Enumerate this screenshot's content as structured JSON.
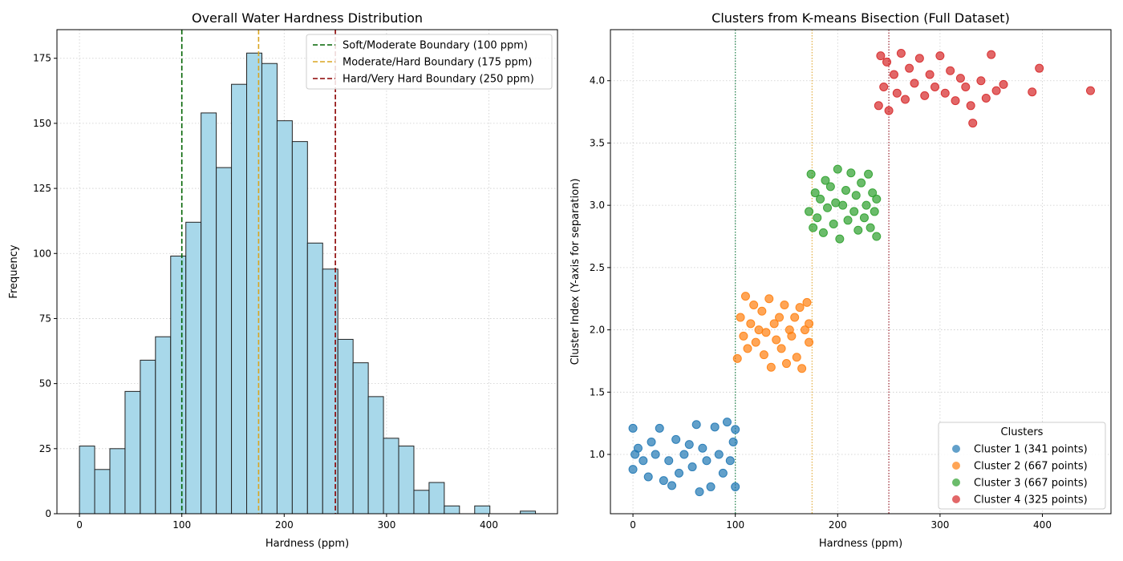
{
  "chart_data": [
    {
      "type": "histogram",
      "title": "Overall Water Hardness Distribution",
      "x_label": "Hardness (ppm)",
      "y_label": "Frequency",
      "bins": [
        0,
        14.85,
        29.7,
        44.55,
        59.4,
        74.25,
        89.1,
        103.95,
        118.8,
        133.65,
        148.5,
        163.35,
        178.2,
        193.05,
        207.9,
        222.75,
        237.6,
        252.45,
        267.3,
        282.15,
        297,
        311.85,
        326.7,
        341.55,
        356.4,
        371.25,
        386.1,
        400.95,
        415.8,
        430.65,
        445.5
      ],
      "values": [
        26,
        17,
        25,
        47,
        59,
        68,
        99,
        112,
        154,
        133,
        165,
        177,
        173,
        151,
        143,
        104,
        94,
        67,
        58,
        45,
        29,
        26,
        9,
        12,
        3,
        0,
        3,
        0,
        0,
        1
      ],
      "color": "#a8d8ea",
      "xlim": [
        -22,
        467
      ],
      "ylim": [
        0,
        186
      ],
      "xticks": [
        0,
        100,
        200,
        300,
        400
      ],
      "yticks": [
        0,
        25,
        50,
        75,
        100,
        125,
        150,
        175
      ],
      "grid": true,
      "vlines": [
        {
          "x": 100,
          "name": "Soft/Moderate Boundary (100 ppm)",
          "color": "#006400"
        },
        {
          "x": 175,
          "name": "Moderate/Hard Boundary (175 ppm)",
          "color": "#daa520"
        },
        {
          "x": 250,
          "name": "Hard/Very Hard Boundary (250 ppm)",
          "color": "#8b0000"
        }
      ],
      "legend": "upper right"
    },
    {
      "type": "scatter",
      "title": "Clusters from K-means Bisection (Full Dataset)",
      "x_label": "Hardness (ppm)",
      "y_label": "Cluster Index (Y-axis for separation)",
      "xlim": [
        -22,
        467
      ],
      "ylim": [
        0.524,
        4.41
      ],
      "xticks": [
        0,
        100,
        200,
        300,
        400
      ],
      "yticks": [
        {
          "value": 1,
          "label": "1.0"
        },
        {
          "value": 1.5,
          "label": "1.5"
        },
        {
          "value": 2,
          "label": "2.0"
        },
        {
          "value": 2.5,
          "label": "2.5"
        },
        {
          "value": 3,
          "label": "3.0"
        },
        {
          "value": 3.5,
          "label": "3.5"
        },
        {
          "value": 4,
          "label": "4.0"
        }
      ],
      "grid": true,
      "legend_title": "Clusters",
      "legend": "lower right",
      "vlines": [
        {
          "x": 100,
          "color": "#2e8b57"
        },
        {
          "x": 175,
          "color": "#e6b450"
        },
        {
          "x": 250,
          "color": "#a0303a"
        }
      ],
      "series": [
        {
          "name": "Cluster 1 (341 points)",
          "color": "#1f77b4",
          "x": [
            0,
            0,
            2,
            5,
            10,
            15,
            18,
            22,
            26,
            30,
            35,
            38,
            42,
            45,
            50,
            55,
            58,
            62,
            65,
            68,
            72,
            76,
            80,
            84,
            88,
            92,
            95,
            98,
            100,
            100
          ],
          "values": [
            1.21,
            0.88,
            1.0,
            1.05,
            0.95,
            0.82,
            1.1,
            1.0,
            1.21,
            0.79,
            0.95,
            0.75,
            1.12,
            0.85,
            1.0,
            1.08,
            0.9,
            1.24,
            0.7,
            1.05,
            0.95,
            0.74,
            1.22,
            1.0,
            0.85,
            1.26,
            0.95,
            1.1,
            0.74,
            1.2
          ]
        },
        {
          "name": "Cluster 2 (667 points)",
          "color": "#ff7f0e",
          "x": [
            102,
            105,
            108,
            110,
            112,
            115,
            118,
            120,
            123,
            126,
            128,
            130,
            133,
            135,
            138,
            140,
            143,
            145,
            148,
            150,
            153,
            155,
            158,
            160,
            163,
            165,
            168,
            170,
            172,
            172
          ],
          "values": [
            1.77,
            2.1,
            1.95,
            2.27,
            1.85,
            2.05,
            2.2,
            1.9,
            2.0,
            2.15,
            1.8,
            1.98,
            2.25,
            1.7,
            2.05,
            1.92,
            2.1,
            1.85,
            2.2,
            1.73,
            2.0,
            1.95,
            2.1,
            1.78,
            2.18,
            1.69,
            2.0,
            2.22,
            1.9,
            2.05
          ]
        },
        {
          "name": "Cluster 3 (667 points)",
          "color": "#2ca02c",
          "x": [
            172,
            174,
            176,
            178,
            180,
            183,
            186,
            188,
            190,
            193,
            196,
            198,
            200,
            202,
            205,
            208,
            210,
            213,
            216,
            218,
            220,
            223,
            226,
            228,
            230,
            232,
            234,
            236,
            238,
            238
          ],
          "values": [
            2.95,
            3.25,
            2.82,
            3.1,
            2.9,
            3.05,
            2.78,
            3.2,
            2.98,
            3.15,
            2.85,
            3.02,
            3.29,
            2.73,
            3.0,
            3.12,
            2.88,
            3.26,
            2.95,
            3.08,
            2.8,
            3.18,
            2.9,
            3.0,
            3.25,
            2.82,
            3.1,
            2.95,
            2.75,
            3.05
          ]
        },
        {
          "name": "Cluster 4 (325 points)",
          "color": "#d62728",
          "x": [
            240,
            242,
            245,
            248,
            250,
            255,
            258,
            262,
            266,
            270,
            275,
            280,
            285,
            290,
            295,
            300,
            305,
            310,
            315,
            320,
            325,
            330,
            332,
            340,
            345,
            350,
            355,
            362,
            390,
            397,
            447
          ],
          "values": [
            3.8,
            4.2,
            3.95,
            4.15,
            3.76,
            4.05,
            3.9,
            4.22,
            3.85,
            4.1,
            3.98,
            4.18,
            3.88,
            4.05,
            3.95,
            4.2,
            3.9,
            4.08,
            3.84,
            4.02,
            3.95,
            3.8,
            3.66,
            4.0,
            3.86,
            4.21,
            3.92,
            3.97,
            3.91,
            4.1,
            3.92
          ]
        }
      ]
    }
  ]
}
